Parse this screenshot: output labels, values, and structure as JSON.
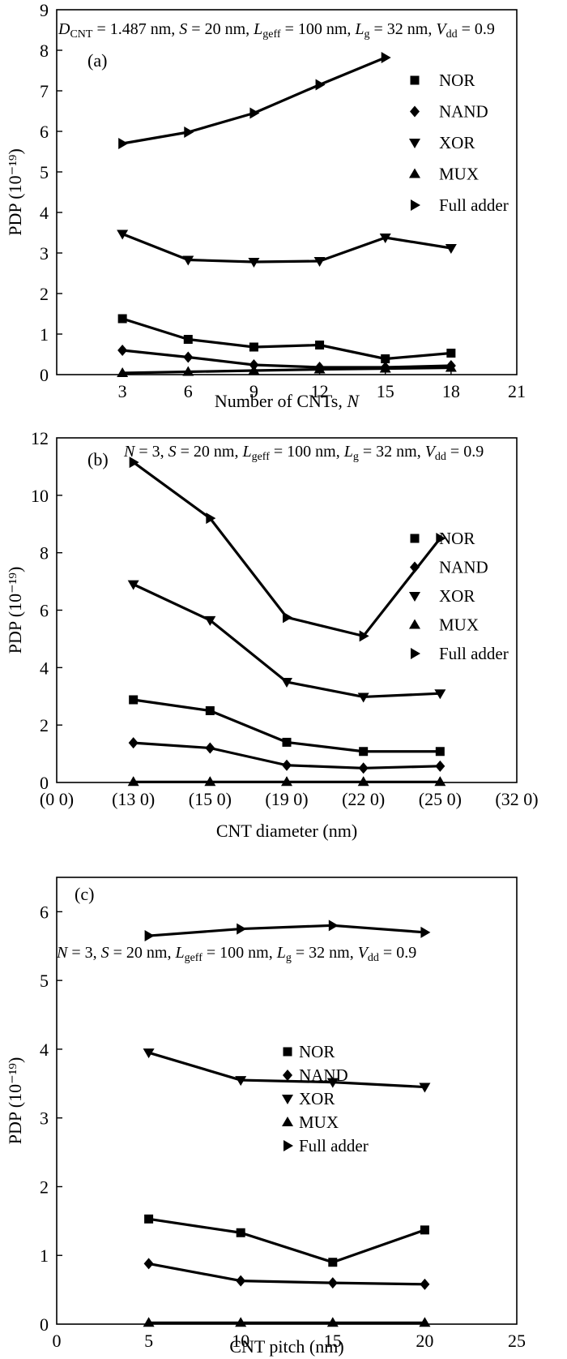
{
  "chart_data": [
    {
      "type": "line",
      "panel_label": "(a)",
      "annotation": "D_CNT = 1.487 nm, S = 20 nm, L_geff = 100 nm, L_g = 32 nm, V_dd = 0.9",
      "annotation_parts": [
        {
          "t": "D",
          "i": true
        },
        {
          "t": "CNT",
          "sub": true
        },
        {
          "t": " = 1.487 nm, "
        },
        {
          "t": "S",
          "i": true
        },
        {
          "t": " = 20 nm, "
        },
        {
          "t": "L",
          "i": true
        },
        {
          "t": "geff",
          "sub": true
        },
        {
          "t": " = 100 nm, "
        },
        {
          "t": "L",
          "i": true
        },
        {
          "t": "g",
          "sub": true
        },
        {
          "t": " = 32 nm, "
        },
        {
          "t": "V",
          "i": true
        },
        {
          "t": "dd",
          "sub": true
        },
        {
          "t": " = 0.9"
        }
      ],
      "xlabel": "Number of CNTs, N",
      "xlabel_parts": [
        {
          "t": "Number of CNTs, "
        },
        {
          "t": "N",
          "i": true
        }
      ],
      "ylabel": "PDP (10⁻¹⁹)",
      "xlim": [
        0,
        21
      ],
      "ylim": [
        0,
        9
      ],
      "xticks": [
        3,
        6,
        9,
        12,
        15,
        18,
        21
      ],
      "xtick_labels": [
        "3",
        "6",
        "9",
        "12",
        "15",
        "18",
        "21"
      ],
      "yticks": [
        0,
        1,
        2,
        3,
        4,
        5,
        6,
        7,
        8,
        9
      ],
      "ytick_labels": [
        "0",
        "1",
        "2",
        "3",
        "4",
        "5",
        "6",
        "7",
        "8",
        "9"
      ],
      "legend_position": "right",
      "series": [
        {
          "name": "NOR",
          "marker": "square",
          "x": [
            3,
            6,
            9,
            12,
            15,
            18
          ],
          "y": [
            1.38,
            0.87,
            0.68,
            0.73,
            0.39,
            0.53
          ]
        },
        {
          "name": "NAND",
          "marker": "diamond",
          "x": [
            3,
            6,
            9,
            12,
            15,
            18
          ],
          "y": [
            0.6,
            0.43,
            0.24,
            0.18,
            0.18,
            0.22
          ]
        },
        {
          "name": "XOR",
          "marker": "triangle-down",
          "x": [
            3,
            6,
            9,
            12,
            15,
            18
          ],
          "y": [
            3.47,
            2.83,
            2.78,
            2.8,
            3.38,
            3.12
          ]
        },
        {
          "name": "MUX",
          "marker": "triangle-up",
          "x": [
            3,
            6,
            9,
            12,
            15,
            18
          ],
          "y": [
            0.04,
            0.07,
            0.1,
            0.13,
            0.15,
            0.17
          ]
        },
        {
          "name": "Full adder",
          "marker": "triangle-right",
          "x": [
            3,
            6,
            9,
            12,
            15
          ],
          "y": [
            5.7,
            5.98,
            6.45,
            7.15,
            7.82
          ]
        }
      ]
    },
    {
      "type": "line",
      "panel_label": "(b)",
      "annotation": "N = 3, S = 20 nm, L_geff = 100 nm, L_g = 32 nm, V_dd = 0.9",
      "annotation_parts": [
        {
          "t": "N",
          "i": true
        },
        {
          "t": " = 3, "
        },
        {
          "t": "S",
          "i": true
        },
        {
          "t": " = 20 nm, "
        },
        {
          "t": "L",
          "i": true
        },
        {
          "t": "geff",
          "sub": true
        },
        {
          "t": " = 100 nm, "
        },
        {
          "t": "L",
          "i": true
        },
        {
          "t": "g",
          "sub": true
        },
        {
          "t": " = 32 nm, "
        },
        {
          "t": "V",
          "i": true
        },
        {
          "t": "dd",
          "sub": true
        },
        {
          "t": " = 0.9"
        }
      ],
      "xlabel": "CNT diameter (nm)",
      "ylabel": "PDP (10⁻¹⁹)",
      "xlim": [
        0,
        6
      ],
      "ylim": [
        0,
        12
      ],
      "xticks": [
        0,
        1,
        2,
        3,
        4,
        5,
        6
      ],
      "xtick_labels": [
        "(0  0)",
        "(13  0)",
        "(15  0)",
        "(19  0)",
        "(22  0)",
        "(25  0)",
        "(32 0)"
      ],
      "yticks": [
        0,
        2,
        4,
        6,
        8,
        10,
        12
      ],
      "ytick_labels": [
        "0",
        "2",
        "4",
        "6",
        "8",
        "10",
        "12"
      ],
      "legend_position": "right",
      "series": [
        {
          "name": "NOR",
          "marker": "square",
          "x": [
            1,
            2,
            3,
            4,
            5
          ],
          "y": [
            2.88,
            2.5,
            1.4,
            1.08,
            1.08
          ]
        },
        {
          "name": "NAND",
          "marker": "diamond",
          "x": [
            1,
            2,
            3,
            4,
            5
          ],
          "y": [
            1.38,
            1.2,
            0.6,
            0.5,
            0.57
          ]
        },
        {
          "name": "XOR",
          "marker": "triangle-down",
          "x": [
            1,
            2,
            3,
            4,
            5
          ],
          "y": [
            6.9,
            5.65,
            3.5,
            2.98,
            3.1
          ]
        },
        {
          "name": "MUX",
          "marker": "triangle-up",
          "x": [
            1,
            2,
            3,
            4,
            5
          ],
          "y": [
            0.02,
            0.02,
            0.02,
            0.02,
            0.02
          ]
        },
        {
          "name": "Full adder",
          "marker": "triangle-right",
          "x": [
            1,
            2,
            3,
            4,
            5
          ],
          "y": [
            11.15,
            9.2,
            5.75,
            5.1,
            8.5
          ]
        }
      ]
    },
    {
      "type": "line",
      "panel_label": "(c)",
      "annotation": "N = 3, S = 20 nm, L_geff = 100 nm, L_g = 32 nm, V_dd = 0.9",
      "annotation_parts": [
        {
          "t": "N",
          "i": true
        },
        {
          "t": " = 3, "
        },
        {
          "t": "S",
          "i": true
        },
        {
          "t": " = 20 nm, "
        },
        {
          "t": "L",
          "i": true
        },
        {
          "t": "geff",
          "sub": true
        },
        {
          "t": " = 100 nm, "
        },
        {
          "t": "L",
          "i": true
        },
        {
          "t": "g",
          "sub": true
        },
        {
          "t": " = 32 nm, "
        },
        {
          "t": "V",
          "i": true
        },
        {
          "t": "dd",
          "sub": true
        },
        {
          "t": " = 0.9"
        }
      ],
      "xlabel": "CNT pitch (nm)",
      "ylabel": "PDP (10⁻¹⁹)",
      "xlim": [
        0,
        25
      ],
      "ylim": [
        0,
        6.5
      ],
      "xticks": [
        0,
        5,
        10,
        15,
        20,
        25
      ],
      "xtick_labels": [
        "0",
        "5",
        "10",
        "15",
        "20",
        "25"
      ],
      "yticks": [
        0,
        1,
        2,
        3,
        4,
        5,
        6
      ],
      "ytick_labels": [
        "0",
        "1",
        "2",
        "3",
        "4",
        "5",
        "6"
      ],
      "legend_position": "center",
      "series": [
        {
          "name": "NOR",
          "marker": "square",
          "x": [
            5,
            10,
            15,
            20
          ],
          "y": [
            1.53,
            1.33,
            0.9,
            1.37
          ]
        },
        {
          "name": "NAND",
          "marker": "diamond",
          "x": [
            5,
            10,
            15,
            20
          ],
          "y": [
            0.88,
            0.63,
            0.6,
            0.58
          ]
        },
        {
          "name": "XOR",
          "marker": "triangle-down",
          "x": [
            5,
            10,
            15,
            20
          ],
          "y": [
            3.95,
            3.55,
            3.52,
            3.45
          ]
        },
        {
          "name": "MUX",
          "marker": "triangle-up",
          "x": [
            5,
            10,
            15,
            20
          ],
          "y": [
            0.02,
            0.02,
            0.02,
            0.02
          ]
        },
        {
          "name": "Full adder",
          "marker": "triangle-right",
          "x": [
            5,
            10,
            15,
            20
          ],
          "y": [
            5.65,
            5.75,
            5.8,
            5.7
          ]
        }
      ]
    }
  ]
}
